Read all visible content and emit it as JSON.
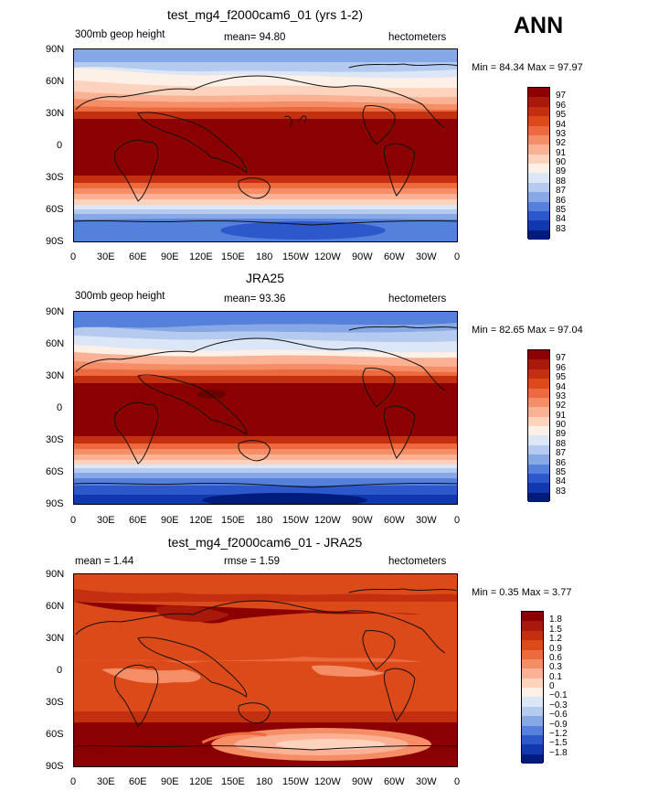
{
  "season": "ANN",
  "panels": [
    {
      "title": "test_mg4_f2000cam6_01 (yrs 1-2)",
      "left_label": "300mb geop height",
      "center_label": "mean=   94.80",
      "right_label": "hectometers",
      "minmax": "Min =   84.34  Max =   97.97",
      "colorbar_labels": [
        "97",
        "96",
        "95",
        "94",
        "93",
        "92",
        "91",
        "90",
        "89",
        "88",
        "87",
        "86",
        "85",
        "84",
        "83"
      ],
      "colors": [
        "#8b0000",
        "#a8190a",
        "#c3300f",
        "#dc4a1a",
        "#ec6a3d",
        "#f58d66",
        "#fab194",
        "#fdd3bd",
        "#fdf0e6",
        "#dbe6f7",
        "#b4cbef",
        "#86a8e6",
        "#5580db",
        "#2c58cc",
        "#1238b0",
        "#001c7a"
      ]
    },
    {
      "title": "JRA25",
      "left_label": "300mb geop height",
      "center_label": "mean=   93.36",
      "right_label": "hectometers",
      "minmax": "Min =   82.65  Max =   97.04",
      "colorbar_labels": [
        "97",
        "96",
        "95",
        "94",
        "93",
        "92",
        "91",
        "90",
        "89",
        "88",
        "87",
        "86",
        "85",
        "84",
        "83"
      ],
      "colors": [
        "#8b0000",
        "#a8190a",
        "#c3300f",
        "#dc4a1a",
        "#ec6a3d",
        "#f58d66",
        "#fab194",
        "#fdd3bd",
        "#fdf0e6",
        "#dbe6f7",
        "#b4cbef",
        "#86a8e6",
        "#5580db",
        "#2c58cc",
        "#1238b0",
        "#001c7a"
      ]
    },
    {
      "title": "test_mg4_f2000cam6_01 - JRA25",
      "left_label": "mean =     1.44",
      "center_label": "rmse =     1.59",
      "right_label": "hectometers",
      "minmax": "Min =    0.35  Max =    3.77",
      "colorbar_labels": [
        "1.8",
        "1.5",
        "1.2",
        "0.9",
        "0.6",
        "0.3",
        "0.1",
        "0",
        "−0.1",
        "−0.3",
        "−0.6",
        "−0.9",
        "−1.2",
        "−1.5",
        "−1.8"
      ],
      "colors": [
        "#8b0000",
        "#a8190a",
        "#c3300f",
        "#dc4a1a",
        "#ec6a3d",
        "#f58d66",
        "#fab194",
        "#fdd3bd",
        "#fdf0e6",
        "#dbe6f7",
        "#b4cbef",
        "#86a8e6",
        "#5580db",
        "#2c58cc",
        "#1238b0",
        "#001c7a"
      ]
    }
  ],
  "lat_labels": [
    "90N",
    "60N",
    "30N",
    "0",
    "30S",
    "60S",
    "90S"
  ],
  "lon_labels": [
    "0",
    "30E",
    "60E",
    "90E",
    "120E",
    "150E",
    "180",
    "150W",
    "120W",
    "90W",
    "60W",
    "30W",
    "0"
  ]
}
